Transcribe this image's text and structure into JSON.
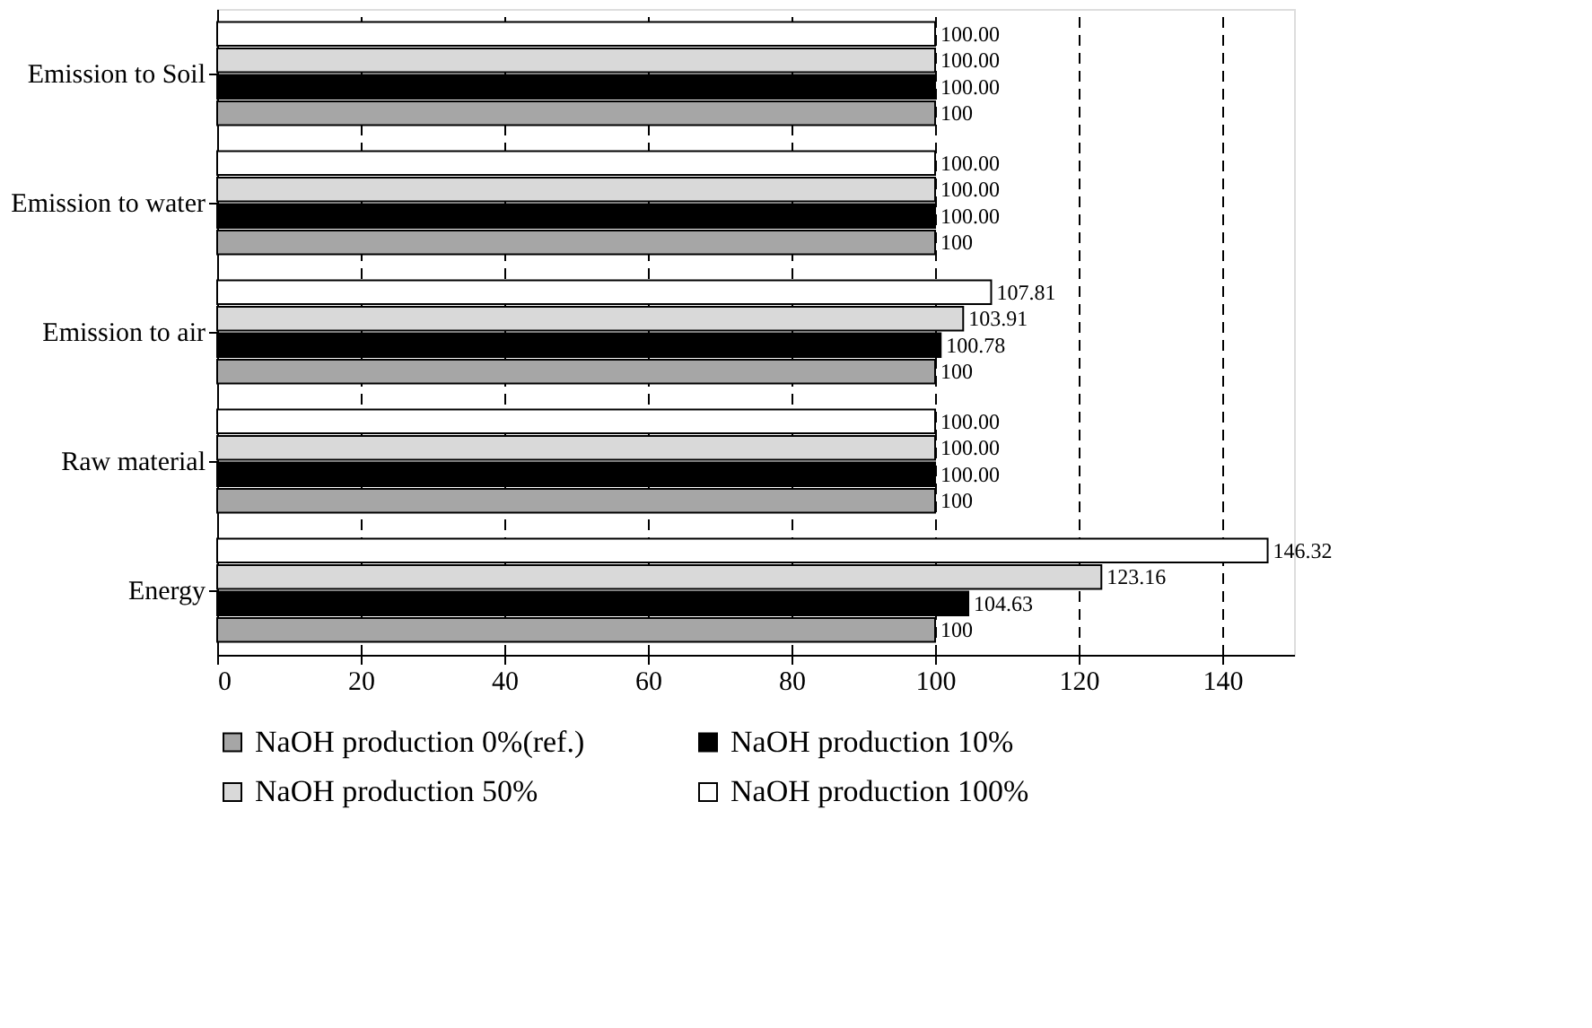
{
  "chart_data": {
    "type": "bar",
    "orientation": "horizontal",
    "categories": [
      "Emission to Soil",
      "Emission to water",
      "Emission to air",
      "Raw material",
      "Energy"
    ],
    "series": [
      {
        "name": "NaOH production 100%",
        "color": "#ffffff",
        "values": [
          100.0,
          100.0,
          107.81,
          100.0,
          146.32
        ],
        "value_labels": [
          "100.00",
          "100.00",
          "107.81",
          "100.00",
          "146.32"
        ]
      },
      {
        "name": "NaOH production 50%",
        "color": "#d9d9d9",
        "values": [
          100.0,
          100.0,
          103.91,
          100.0,
          123.16
        ],
        "value_labels": [
          "100.00",
          "100.00",
          "103.91",
          "100.00",
          "123.16"
        ]
      },
      {
        "name": "NaOH production 10%",
        "color": "#000000",
        "values": [
          100.0,
          100.0,
          100.78,
          100.0,
          104.63
        ],
        "value_labels": [
          "100.00",
          "100.00",
          "100.78",
          "100.00",
          "104.63"
        ]
      },
      {
        "name": "NaOH production 0%(ref.)",
        "color": "#a6a6a6",
        "values": [
          100,
          100,
          100,
          100,
          100
        ],
        "value_labels": [
          "100",
          "100",
          "100",
          "100",
          "100"
        ]
      }
    ],
    "xlim": [
      0,
      150
    ],
    "xticks": [
      0,
      20,
      40,
      60,
      80,
      100,
      120,
      140
    ],
    "grid": "x",
    "legend": "bottom"
  }
}
